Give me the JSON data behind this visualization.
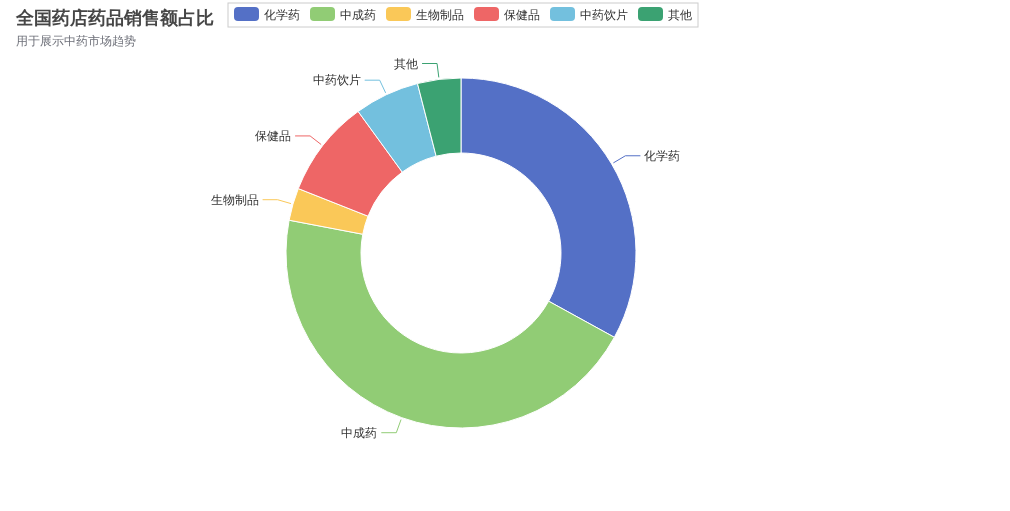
{
  "chart_data": {
    "type": "donut",
    "title": "全国药店药品销售额占比",
    "subtitle": "用于展示中药市场趋势",
    "categories": [
      "化学药",
      "中成药",
      "生物制品",
      "保健品",
      "中药饮片",
      "其他"
    ],
    "values": [
      33,
      45,
      3,
      9,
      6,
      4
    ],
    "colors": [
      "#5470c6",
      "#91cc75",
      "#fac858",
      "#ee6666",
      "#73c0de",
      "#3ba272"
    ],
    "legend": "top"
  }
}
